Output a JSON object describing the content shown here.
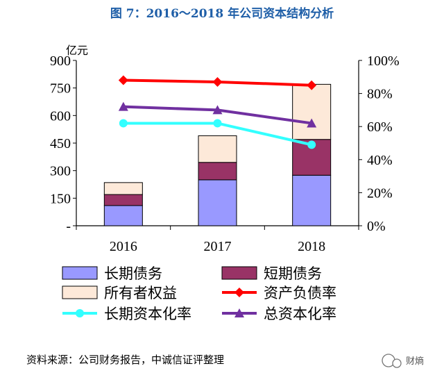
{
  "chart_data": {
    "type": "bar",
    "title": "图 7：2016～2018 年公司资本结构分析",
    "y_unit": "亿元",
    "categories": [
      "2016",
      "2017",
      "2018"
    ],
    "ylim": [
      0,
      900
    ],
    "y_ticks": [
      "-",
      "150",
      "300",
      "450",
      "600",
      "750",
      "900"
    ],
    "y2lim": [
      0,
      1
    ],
    "y2_ticks": [
      "0%",
      "20%",
      "40%",
      "60%",
      "80%",
      "100%"
    ],
    "bar_series": [
      {
        "name": "长期债务",
        "color": "#9999ff",
        "values": [
          110,
          250,
          275
        ]
      },
      {
        "name": "短期债务",
        "color": "#993366",
        "values": [
          60,
          95,
          195
        ]
      },
      {
        "name": "所有者权益",
        "color": "#fde9d9",
        "values": [
          65,
          145,
          300
        ]
      }
    ],
    "line_series": [
      {
        "name": "资产负债率",
        "color": "#ff0000",
        "marker": "diamond",
        "values": [
          0.88,
          0.87,
          0.85
        ]
      },
      {
        "name": "长期资本化率",
        "color": "#33ffff",
        "marker": "circle",
        "values": [
          0.62,
          0.62,
          0.49
        ]
      },
      {
        "name": "总资本化率",
        "color": "#7030a0",
        "marker": "triangle",
        "values": [
          0.72,
          0.7,
          0.62
        ]
      }
    ],
    "source": "资料来源：公司财务报告，中诚信证评整理",
    "watermark": "财熵"
  }
}
